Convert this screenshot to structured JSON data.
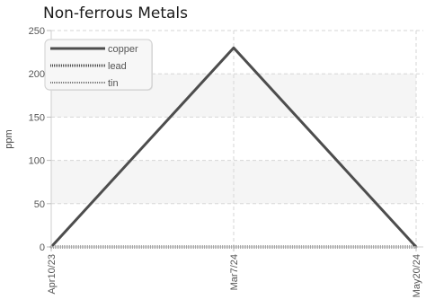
{
  "chart_data": {
    "type": "line",
    "title": "Non-ferrous Metals",
    "xlabel": "",
    "ylabel": "ppm",
    "categories": [
      "Apr10/23",
      "Mar7/24",
      "May20/24"
    ],
    "series": [
      {
        "name": "copper",
        "values": [
          0,
          230,
          0
        ],
        "color": "#4d4d4d",
        "style": "solid"
      },
      {
        "name": "lead",
        "values": [
          0,
          0,
          0
        ],
        "color": "#4d4d4d",
        "style": "dotted-thick"
      },
      {
        "name": "tin",
        "values": [
          0,
          0,
          0
        ],
        "color": "#7a7a7a",
        "style": "dotted-thin"
      }
    ],
    "ylim": [
      0,
      250
    ],
    "yticks": [
      0,
      50,
      100,
      150,
      200,
      250
    ],
    "grid": true,
    "legend_position": "top-left",
    "band_color": "#f5f5f5"
  }
}
